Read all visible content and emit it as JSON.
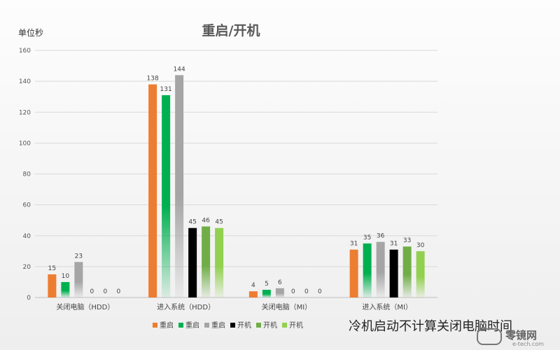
{
  "chart_data": {
    "type": "bar",
    "title": "重启/开机",
    "ylabel": "单位秒",
    "ylim": [
      0,
      160
    ],
    "yticks": [
      0,
      20,
      40,
      60,
      80,
      100,
      120,
      140,
      160
    ],
    "grid": true,
    "legend_position": "bottom",
    "categories": [
      "关闭电脑（HDD）",
      "进入系统（HDD）",
      "关闭电脑（MI）",
      "进入系统（MI）"
    ],
    "series": [
      {
        "name": "重启",
        "color": "#ED7D31",
        "values": [
          15,
          138,
          4,
          31
        ]
      },
      {
        "name": "重启",
        "color": "#00B050",
        "values": [
          10,
          131,
          5,
          35
        ]
      },
      {
        "name": "重启",
        "color": "#A5A5A5",
        "values": [
          23,
          144,
          6,
          36
        ]
      },
      {
        "name": "开机",
        "color": "#000000",
        "values": [
          0,
          45,
          0,
          31
        ]
      },
      {
        "name": "开机",
        "color": "#70AD47",
        "values": [
          0,
          46,
          0,
          33
        ]
      },
      {
        "name": "开机",
        "color": "#92D050",
        "values": [
          0,
          45,
          0,
          30
        ]
      }
    ]
  },
  "annotation": "冷机启动不计算关闭电脑时间",
  "watermark": {
    "name": "零镜网",
    "url": "e-tech.com"
  }
}
